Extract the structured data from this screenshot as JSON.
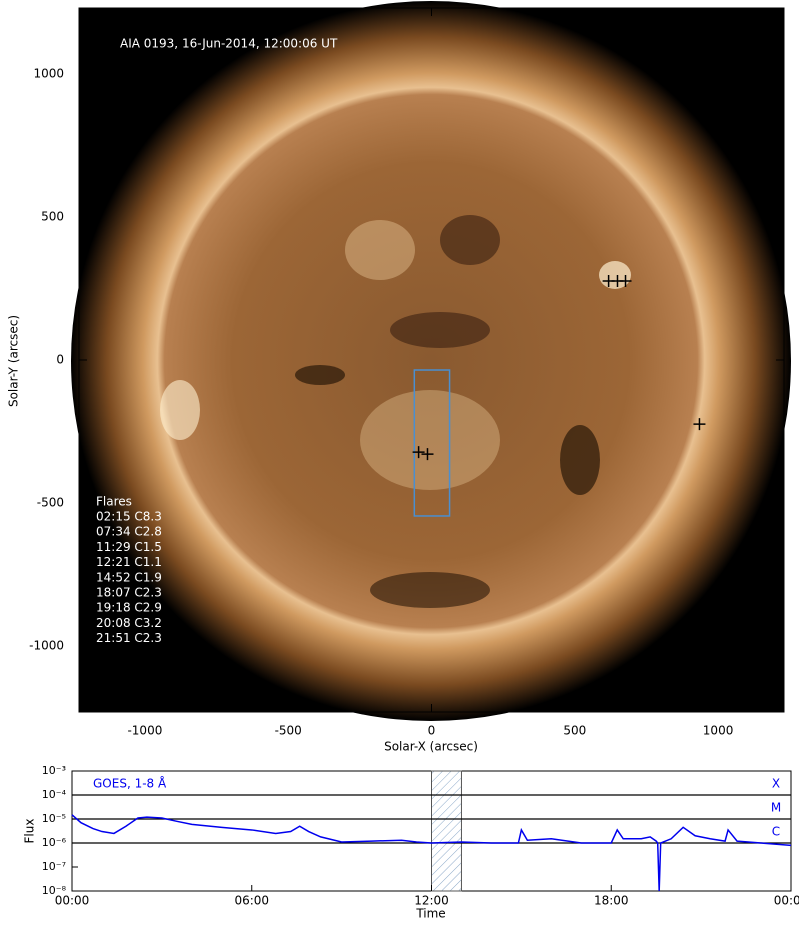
{
  "chart_data": [
    {
      "type": "image",
      "annotation": "AIA 0193, 16-Jun-2014, 12:00:06 UT",
      "x_label": "Solar-X (arcsec)",
      "y_label": "Solar-Y (arcsec)",
      "xlim": [
        -1230,
        1230
      ],
      "ylim": [
        -1230,
        1230
      ],
      "xticks": [
        -1000,
        -500,
        0,
        500,
        1000
      ],
      "yticks": [
        -1000,
        -500,
        0,
        500,
        1000
      ],
      "markers": {
        "x": [
          618,
          649,
          677,
          935,
          -45,
          -14
        ],
        "y": [
          276,
          276,
          276,
          -224,
          -322,
          -329
        ],
        "color": "#000000"
      },
      "box": {
        "x": [
          -60,
          63
        ],
        "y": [
          -545,
          -35
        ],
        "color": "#4a8fd0"
      },
      "flares": {
        "title": "Flares",
        "items": [
          "02:15 C8.3",
          "07:34 C2.8",
          "11:29 C1.5",
          "12:21 C1.1",
          "14:52 C1.9",
          "18:07 C2.3",
          "19:18 C2.9",
          "20:08 C3.2",
          "21:51 C2.3"
        ]
      }
    },
    {
      "type": "line",
      "annotation": "GOES, 1-8 Å",
      "x_label": "Time",
      "y_label": "Flux",
      "xlim": [
        0,
        24
      ],
      "ylim": [
        1e-08,
        0.001
      ],
      "log_y": true,
      "xticks": [
        {
          "value": 0,
          "label": "00:00"
        },
        {
          "value": 6,
          "label": "06:00"
        },
        {
          "value": 12,
          "label": "12:00"
        },
        {
          "value": 18,
          "label": "18:00"
        },
        {
          "value": 24,
          "label": "00:00"
        }
      ],
      "yticks": [
        {
          "value": 1e-08,
          "label": "10⁻⁸"
        },
        {
          "value": 1e-07,
          "label": "10⁻⁷"
        },
        {
          "value": 1e-06,
          "label": "10⁻⁶"
        },
        {
          "value": 1e-05,
          "label": "10⁻⁵"
        },
        {
          "value": 0.0001,
          "label": "10⁻⁴"
        },
        {
          "value": 0.001,
          "label": "10⁻³"
        }
      ],
      "class_lines": [
        {
          "value": 0.0001,
          "label": "X"
        },
        {
          "value": 1e-05,
          "label": "M"
        },
        {
          "value": 1e-06,
          "label": "C"
        }
      ],
      "highlight": [
        12.0,
        13.0
      ],
      "series": [
        {
          "color": "#0000ee",
          "x": [
            0,
            0.3,
            0.7,
            1.0,
            1.4,
            1.8,
            2.2,
            2.5,
            3.0,
            3.5,
            4.0,
            5.0,
            6.0,
            6.8,
            7.3,
            7.6,
            7.9,
            8.3,
            9.0,
            10.0,
            11.0,
            11.5,
            12.0,
            13.0,
            14.0,
            14.9,
            15.0,
            15.2,
            16.0,
            17.0,
            18.0,
            18.2,
            18.4,
            19.0,
            19.3,
            19.5,
            19.55,
            19.6,
            19.65,
            20.0,
            20.4,
            20.8,
            21.3,
            21.8,
            21.9,
            22.2,
            23.0,
            24.0
          ],
          "values": [
            1.5e-05,
            7e-06,
            4e-06,
            3e-06,
            2.5e-06,
            5e-06,
            1.1e-05,
            1.2e-05,
            1.1e-05,
            8e-06,
            6e-06,
            4.5e-06,
            3.5e-06,
            2.5e-06,
            3e-06,
            5e-06,
            3e-06,
            1.8e-06,
            1.1e-06,
            1.2e-06,
            1.3e-06,
            1.1e-06,
            1e-06,
            1.1e-06,
            1e-06,
            1e-06,
            3.5e-06,
            1.3e-06,
            1.5e-06,
            1e-06,
            1e-06,
            3.5e-06,
            1.5e-06,
            1.5e-06,
            1.8e-06,
            1.2e-06,
            1e-06,
            1e-08,
            1e-06,
            1.5e-06,
            4.5e-06,
            2e-06,
            1.5e-06,
            1.2e-06,
            3.5e-06,
            1.2e-06,
            1e-06,
            8e-07
          ]
        }
      ]
    }
  ]
}
